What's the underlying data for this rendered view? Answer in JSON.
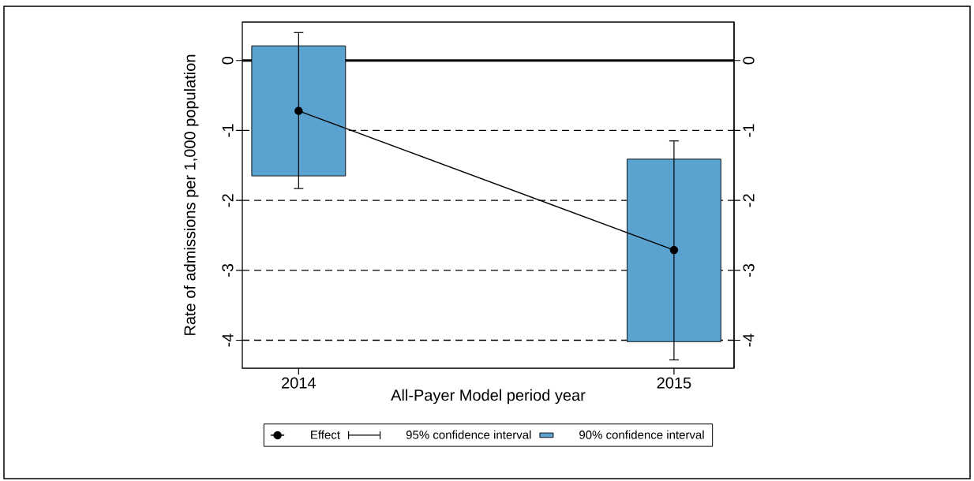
{
  "chart_data": {
    "type": "bar",
    "xlabel": "All-Payer Model period year",
    "ylabel": "Rate of admissions per 1,000 population",
    "x": [
      2014,
      2015
    ],
    "xlim": [
      2013.85,
      2015.16
    ],
    "xticks": [
      2014,
      2015
    ],
    "ylim": [
      -4.4,
      0.55
    ],
    "yticks": [
      -4,
      -3,
      -2,
      -1,
      0
    ],
    "y2lim": [
      -4.4,
      0.55
    ],
    "y2ticks": [
      -4,
      -3,
      -2,
      -1,
      0
    ],
    "series": [
      {
        "type": "line",
        "name": "Effect",
        "color": "#000000",
        "marker": "circle",
        "line_style": "solid",
        "values": [
          -0.72,
          -2.71
        ],
        "errors": [
          [
            -1.83,
            0.4
          ],
          [
            -4.28,
            -1.15
          ]
        ]
      },
      {
        "type": "scatter",
        "name": "95% confidence interval",
        "color": "#000000",
        "marker": "none",
        "values": [
          null,
          null
        ]
      },
      {
        "name": "90% confidence interval",
        "color": "#5aa2cf",
        "base": [
          -1.65,
          -4.02
        ],
        "values": [
          1.86,
          2.61
        ]
      }
    ],
    "ref_lines": [
      {
        "axis": "y",
        "value": 0,
        "line_style": "solid",
        "color": "#000000"
      },
      {
        "axis": "y",
        "value": -1,
        "line_style": "dashed",
        "color": "#000000"
      },
      {
        "axis": "y",
        "value": -2,
        "line_style": "dashed",
        "color": "#000000"
      },
      {
        "axis": "y",
        "value": -3,
        "line_style": "dashed",
        "color": "#000000"
      },
      {
        "axis": "y",
        "value": -4,
        "line_style": "dashed",
        "color": "#000000"
      }
    ],
    "legend": "bottom"
  }
}
